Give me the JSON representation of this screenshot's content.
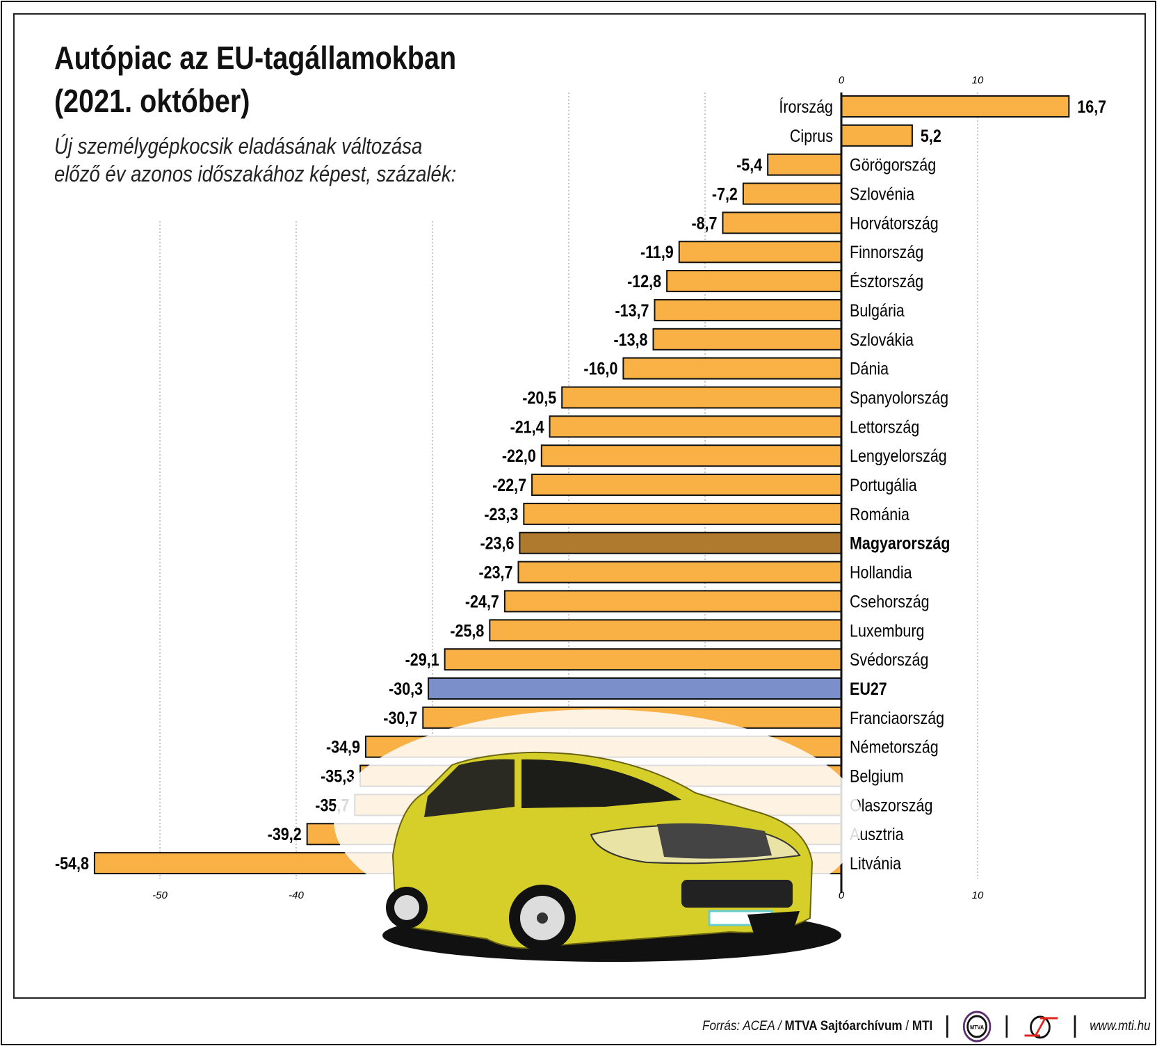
{
  "title_line1": "Autópiac az EU-tagállamokban",
  "title_line2": "(2021. október)",
  "subtitle": "Új személygépkocsik eladásának változása előző év azonos időszakához képest, százalék:",
  "footer": {
    "source_prefix": "Forrás: ACEA /",
    "source_bold": "MTVA Sajtóarchívum",
    "source_sep": "/",
    "source_mti": "MTI",
    "logo1_text": "MTVA",
    "website": "www.mti.hu"
  },
  "colors": {
    "default_bar": "#f9b044",
    "hungary_bar": "#b07a2e",
    "eu_bar": "#7b8fca"
  },
  "chart_data": {
    "type": "bar",
    "orientation": "horizontal",
    "title": "Autópiac az EU-tagállamokban (2021. október)",
    "categories": [
      "Írország",
      "Ciprus",
      "Görögország",
      "Szlovénia",
      "Horvátország",
      "Finnország",
      "Észtország",
      "Bulgária",
      "Szlovákia",
      "Dánia",
      "Spanyolország",
      "Lettország",
      "Lengyelország",
      "Portugália",
      "Románia",
      "Magyarország",
      "Hollandia",
      "Csehország",
      "Luxemburg",
      "Svédország",
      "EU27",
      "Franciaország",
      "Németország",
      "Belgium",
      "Olaszország",
      "Ausztria",
      "Litvánia"
    ],
    "values": [
      16.7,
      5.2,
      -5.4,
      -7.2,
      -8.7,
      -11.9,
      -12.8,
      -13.7,
      -13.8,
      -16.0,
      -20.5,
      -21.4,
      -22.0,
      -22.7,
      -23.3,
      -23.6,
      -23.7,
      -24.7,
      -25.8,
      -29.1,
      -30.3,
      -30.7,
      -34.9,
      -35.3,
      -35.7,
      -39.2,
      -54.8
    ],
    "value_labels": [
      "16,7",
      "5,2",
      "-5,4",
      "-7,2",
      "-8,7",
      "-11,9",
      "-12,8",
      "-13,7",
      "-13,8",
      "-16,0",
      "-20,5",
      "-21,4",
      "-22,0",
      "-22,7",
      "-23,3",
      "-23,6",
      "-23,7",
      "-24,7",
      "-25,8",
      "-29,1",
      "-30,3",
      "-30,7",
      "-34,9",
      "-35,3",
      "-35,7",
      "-39,2",
      "-54,8"
    ],
    "highlight": {
      "Magyarország": "hungary",
      "EU27": "eu"
    },
    "xlim": [
      -55,
      17
    ],
    "top_ticks": [
      "0",
      "10"
    ],
    "bottom_ticks": [
      "-50",
      "-40",
      "0",
      "10"
    ],
    "grid": true
  }
}
